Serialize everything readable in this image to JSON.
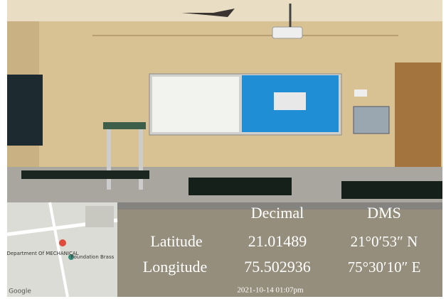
{
  "overlay": {
    "table": {
      "header": [
        "Decimal",
        "DMS"
      ],
      "rows": [
        [
          "Latitude",
          "21.01489",
          "21°0′53″ N"
        ],
        [
          "Longitude",
          "75.502936",
          "75°30′10″ E"
        ]
      ]
    },
    "timestamp": "2021-10-14 01:07pm"
  },
  "map": {
    "labels": [
      "Department Of MECHANICAL",
      "Foundation Brass",
      "Google"
    ]
  }
}
